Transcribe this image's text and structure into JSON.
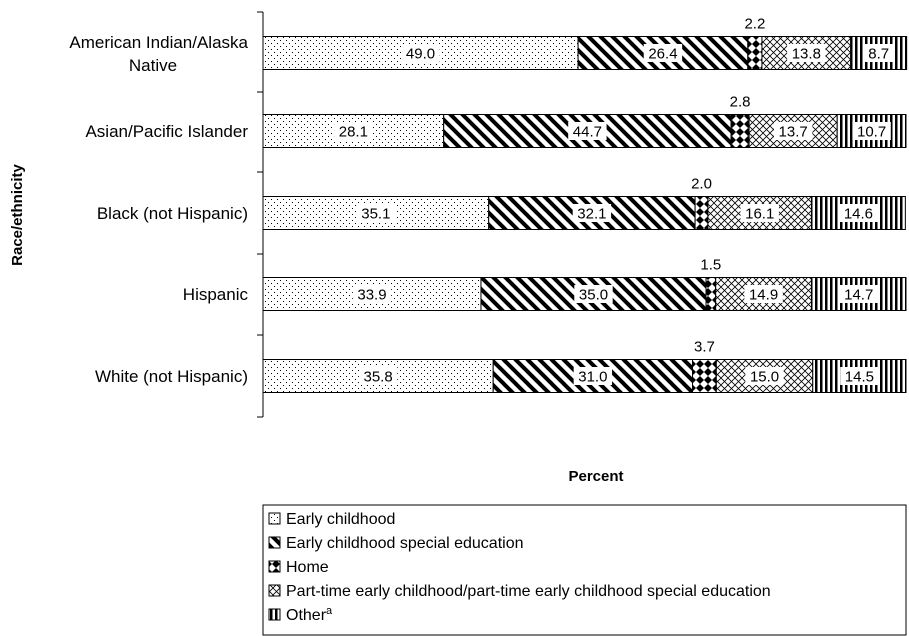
{
  "chart_data": {
    "type": "bar",
    "orientation": "horizontal",
    "stacked": true,
    "ylabel": "Race/ethnicity",
    "xlabel": "Percent",
    "xlim": [
      0,
      100
    ],
    "grid": false,
    "legend_position": "bottom",
    "categories": [
      "American Indian/Alaska Native",
      "Asian/Pacific Islander",
      "Black (not Hispanic)",
      "Hispanic",
      "White (not Hispanic)"
    ],
    "series": [
      {
        "name": "Early childhood",
        "pattern": "dots",
        "values": [
          49.0,
          28.1,
          35.1,
          33.9,
          35.8
        ],
        "labels": [
          "49.0",
          "28.1",
          "35.1",
          "33.9",
          "35.8"
        ]
      },
      {
        "name": "Early childhood special education",
        "pattern": "diagonal",
        "values": [
          26.4,
          44.7,
          32.1,
          35.0,
          31.0
        ],
        "labels": [
          "26.4",
          "44.7",
          "32.1",
          "35.0",
          "31.0"
        ]
      },
      {
        "name": "Home",
        "pattern": "checker",
        "values": [
          2.2,
          2.8,
          2.0,
          1.5,
          3.7
        ],
        "labels": [
          "2.2",
          "2.8",
          "2.0",
          "1.5",
          "3.7"
        ]
      },
      {
        "name": "Part-time early childhood/part-time early childhood special education",
        "pattern": "crosshatch",
        "values": [
          13.8,
          13.7,
          16.1,
          14.9,
          15.0
        ],
        "labels": [
          "13.8",
          "13.7",
          "16.1",
          "14.9",
          "15.0"
        ]
      },
      {
        "name": "Other",
        "name_superscript": "a",
        "pattern": "vertical",
        "values": [
          8.7,
          10.7,
          14.6,
          14.7,
          14.5
        ],
        "labels": [
          "8.7",
          "10.7",
          "14.6",
          "14.7",
          "14.5"
        ]
      }
    ]
  }
}
